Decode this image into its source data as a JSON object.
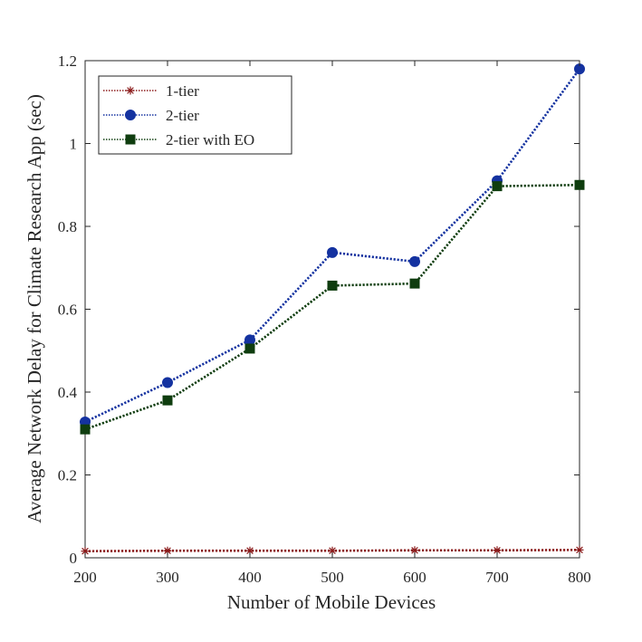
{
  "chart_data": {
    "type": "line",
    "title": "",
    "xlabel": "Number of Mobile Devices",
    "ylabel": "Average Network Delay for Climate Research App (sec)",
    "x": [
      200,
      300,
      400,
      500,
      600,
      700,
      800
    ],
    "xlim": [
      200,
      800
    ],
    "ylim": [
      0,
      1.2
    ],
    "xticks": [
      200,
      300,
      400,
      500,
      600,
      700,
      800
    ],
    "xtick_labels": [
      "200",
      "300",
      "400",
      "500",
      "600",
      "700",
      "800"
    ],
    "yticks": [
      0,
      0.2,
      0.4,
      0.6,
      0.8,
      1,
      1.2
    ],
    "ytick_labels": [
      "0",
      "0.2",
      "0.4",
      "0.6",
      "0.8",
      "1",
      "1.2"
    ],
    "grid": false,
    "legend_position": "top-left",
    "series": [
      {
        "name": "1-tier",
        "values": [
          0.016,
          0.017,
          0.017,
          0.017,
          0.018,
          0.018,
          0.019
        ],
        "color": "#8B1A1A",
        "marker": "asterisk",
        "line_style": "dotted"
      },
      {
        "name": "2-tier",
        "values": [
          0.328,
          0.423,
          0.526,
          0.737,
          0.715,
          0.91,
          1.18
        ],
        "color": "#1432A0",
        "marker": "circle",
        "line_style": "dotted"
      },
      {
        "name": "2-tier with EO",
        "values": [
          0.31,
          0.38,
          0.505,
          0.657,
          0.662,
          0.897,
          0.9
        ],
        "color": "#0F3D0F",
        "marker": "square",
        "line_style": "dotted"
      }
    ]
  }
}
